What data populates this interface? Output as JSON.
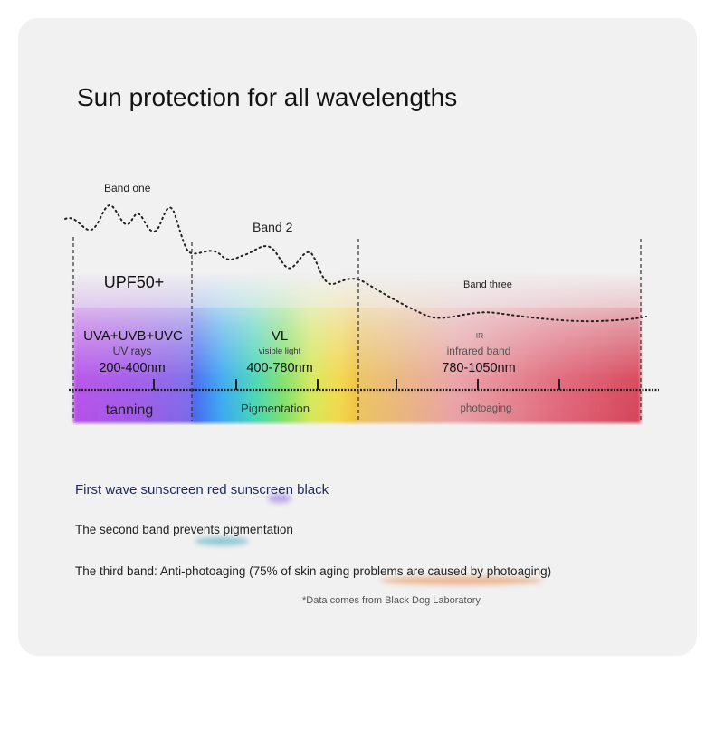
{
  "title": "Sun protection for all wavelengths",
  "bands": [
    {
      "curve_label": "Band one",
      "rating": "UPF50+",
      "short_label": "UVA+UVB+UVC",
      "sublabel": "UV rays",
      "range": "200-400nm",
      "effect": "tanning"
    },
    {
      "curve_label": "Band 2",
      "short_label": "VL",
      "sublabel": "visible light",
      "range": "400-780nm",
      "effect": "Pigmentation"
    },
    {
      "curve_label": "Band three",
      "short_label": "IR",
      "sublabel": "infrared band",
      "range": "780-1050nm",
      "effect": "photoaging"
    }
  ],
  "notes": [
    "First wave sunscreen red sunscreen black",
    "The second band prevents pigmentation",
    "The third band: Anti-photoaging (75% of skin aging problems are caused by photoaging)"
  ],
  "source_note": "*Data comes from Black Dog Laboratory",
  "colors": {
    "card_background": "#f1f1f1",
    "uv_band": "#b060e0",
    "visible_band": "rainbow",
    "infrared_band": "#d84a5c"
  }
}
